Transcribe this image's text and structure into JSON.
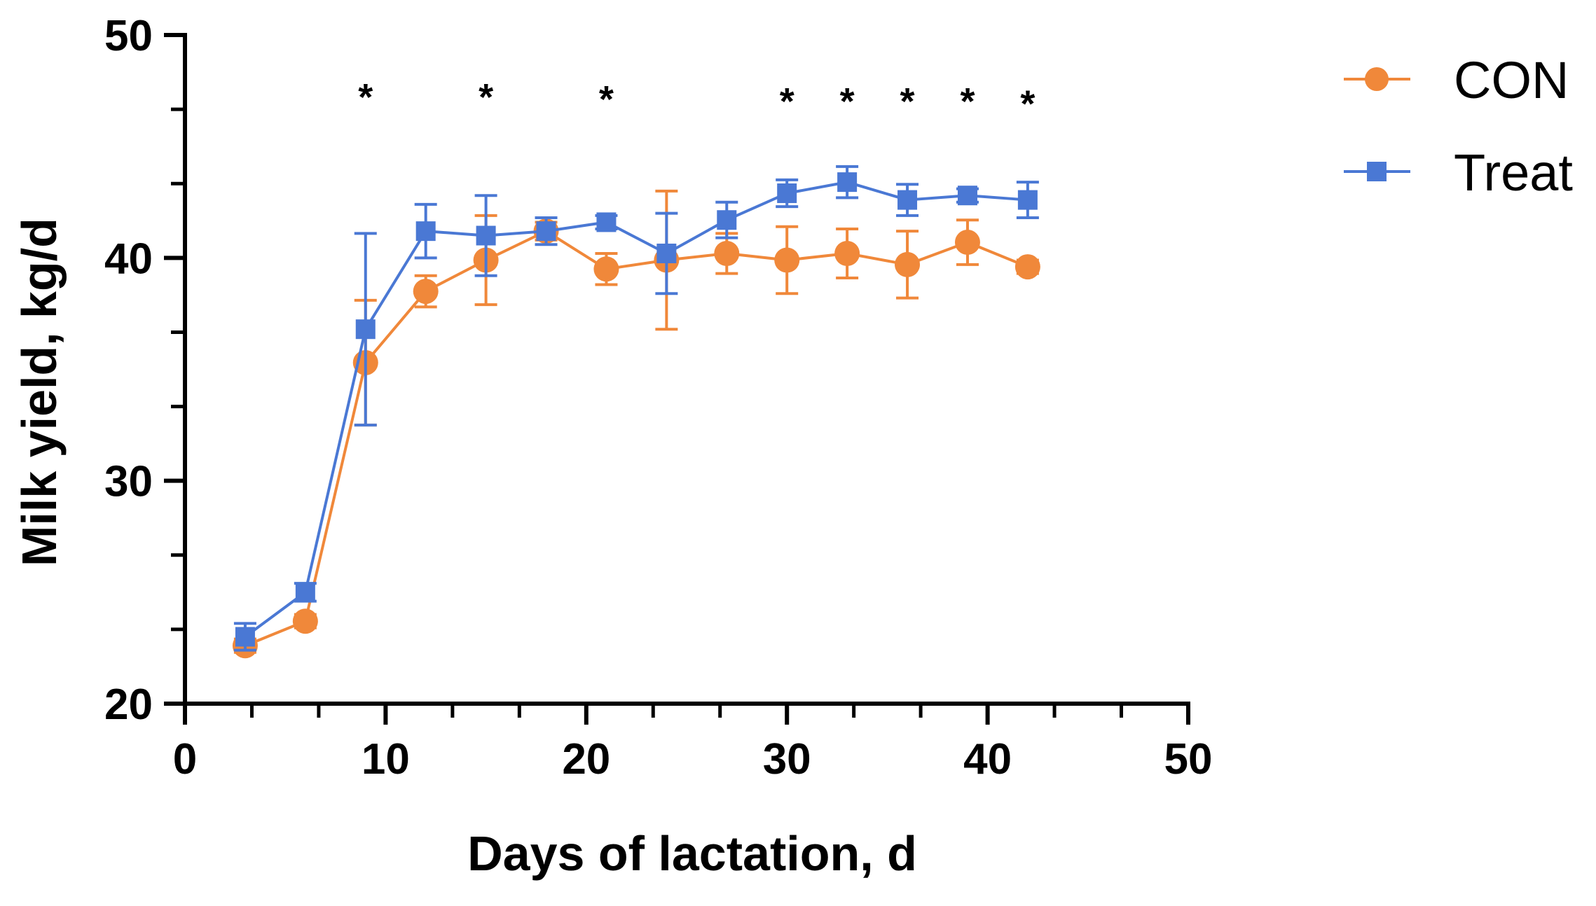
{
  "chart_data": {
    "type": "line",
    "title": "",
    "xlabel": "Days of lactation, d",
    "ylabel": "Milk yield, kg/d",
    "xlim": [
      0,
      50
    ],
    "ylim": [
      20,
      50
    ],
    "xticks": [
      0,
      10,
      20,
      30,
      40,
      50
    ],
    "yticks": [
      20,
      30,
      40,
      50
    ],
    "x_minor_step": 3.333,
    "y_minor_step": 3.333,
    "grid": false,
    "legend_position": "top-right",
    "x": [
      3,
      6,
      9,
      12,
      15,
      18,
      21,
      24,
      27,
      30,
      33,
      36,
      39,
      42
    ],
    "series": [
      {
        "name": "CON",
        "color": "#F0883A",
        "marker": "circle",
        "values": [
          22.6,
          23.7,
          35.3,
          38.5,
          39.9,
          41.2,
          39.5,
          39.9,
          40.2,
          39.9,
          40.2,
          39.7,
          40.7,
          39.6
        ],
        "errors": [
          0.3,
          0.3,
          2.8,
          0.7,
          2.0,
          0.4,
          0.7,
          3.1,
          0.9,
          1.5,
          1.1,
          1.5,
          1.0,
          0.3
        ]
      },
      {
        "name": "Treat",
        "color": "#4A78D4",
        "marker": "square",
        "values": [
          23.0,
          25.0,
          36.8,
          41.2,
          41.0,
          41.2,
          41.6,
          40.2,
          41.7,
          42.9,
          43.4,
          42.6,
          42.8,
          42.6
        ],
        "errors": [
          0.6,
          0.4,
          4.3,
          1.2,
          1.8,
          0.6,
          0.3,
          1.8,
          0.8,
          0.6,
          0.7,
          0.7,
          0.3,
          0.8
        ]
      }
    ],
    "significance": {
      "symbol": "*",
      "x": [
        9,
        15,
        21,
        30,
        33,
        36,
        39,
        42
      ],
      "y": [
        47.4,
        47.4,
        47.3,
        47.2,
        47.2,
        47.2,
        47.2,
        47.1
      ]
    }
  }
}
